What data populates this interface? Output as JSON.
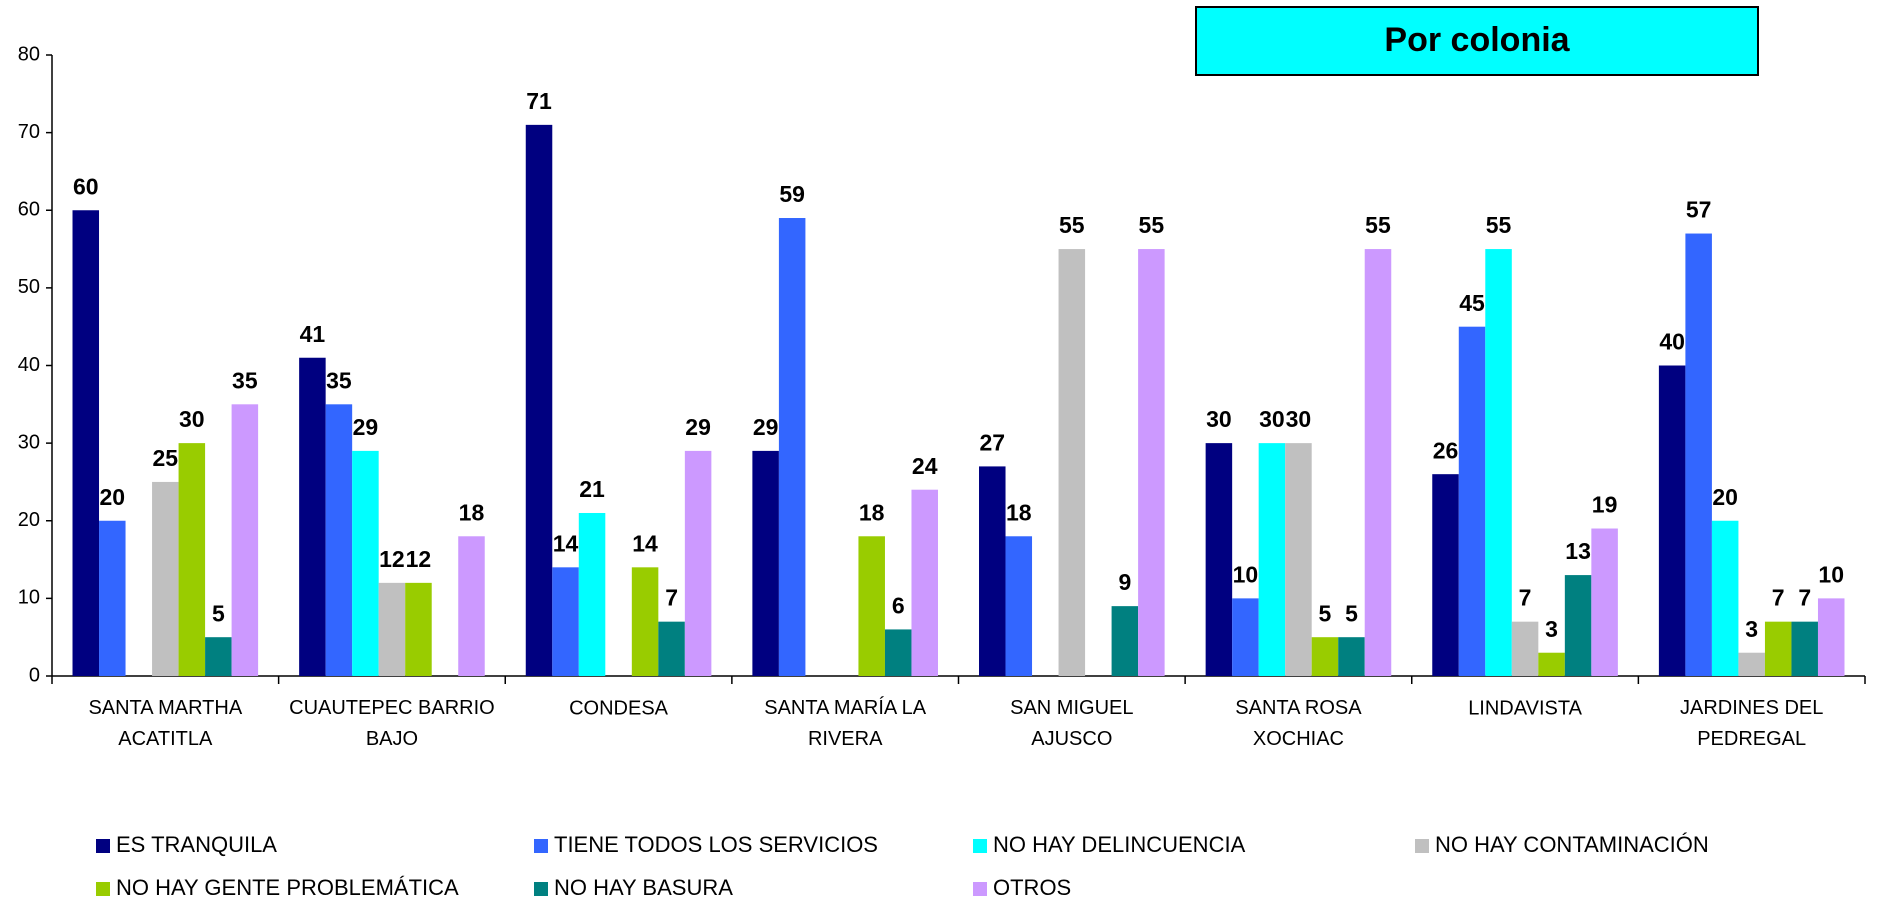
{
  "chart_data": {
    "type": "bar",
    "title": "Por colonia",
    "categories": [
      "SANTA MARTHA ACATITLA",
      "CUAUTEPEC BARRIO BAJO",
      "CONDESA",
      "SANTA MARÍA LA RIVERA",
      "SAN MIGUEL AJUSCO",
      "SANTA ROSA XOCHIAC",
      "LINDAVISTA",
      "JARDINES DEL PEDREGAL"
    ],
    "series": [
      {
        "name": "ES TRANQUILA",
        "color": "#000080",
        "values": [
          60,
          41,
          71,
          29,
          27,
          30,
          26,
          40
        ]
      },
      {
        "name": "TIENE TODOS LOS SERVICIOS",
        "color": "#3366FF",
        "values": [
          20,
          35,
          14,
          59,
          18,
          10,
          45,
          57
        ]
      },
      {
        "name": "NO HAY DELINCUENCIA",
        "color": "#00FFFF",
        "values": [
          null,
          29,
          21,
          null,
          null,
          30,
          55,
          20
        ]
      },
      {
        "name": "NO HAY CONTAMINACIÓN",
        "color": "#C0C0C0",
        "values": [
          25,
          12,
          null,
          null,
          55,
          30,
          7,
          3
        ]
      },
      {
        "name": "NO HAY GENTE PROBLEMÁTICA",
        "color": "#99CC00",
        "values": [
          30,
          12,
          14,
          18,
          null,
          5,
          3,
          7
        ]
      },
      {
        "name": "NO HAY BASURA",
        "color": "#008080",
        "values": [
          5,
          null,
          7,
          6,
          9,
          5,
          13,
          7
        ]
      },
      {
        "name": "OTROS",
        "color": "#CC99FF",
        "values": [
          35,
          18,
          29,
          24,
          55,
          55,
          19,
          10
        ]
      }
    ],
    "ylim": [
      0,
      80
    ],
    "yticks": [
      0,
      10,
      20,
      30,
      40,
      50,
      60,
      70,
      80
    ],
    "grid": false,
    "legend": "bottom"
  }
}
